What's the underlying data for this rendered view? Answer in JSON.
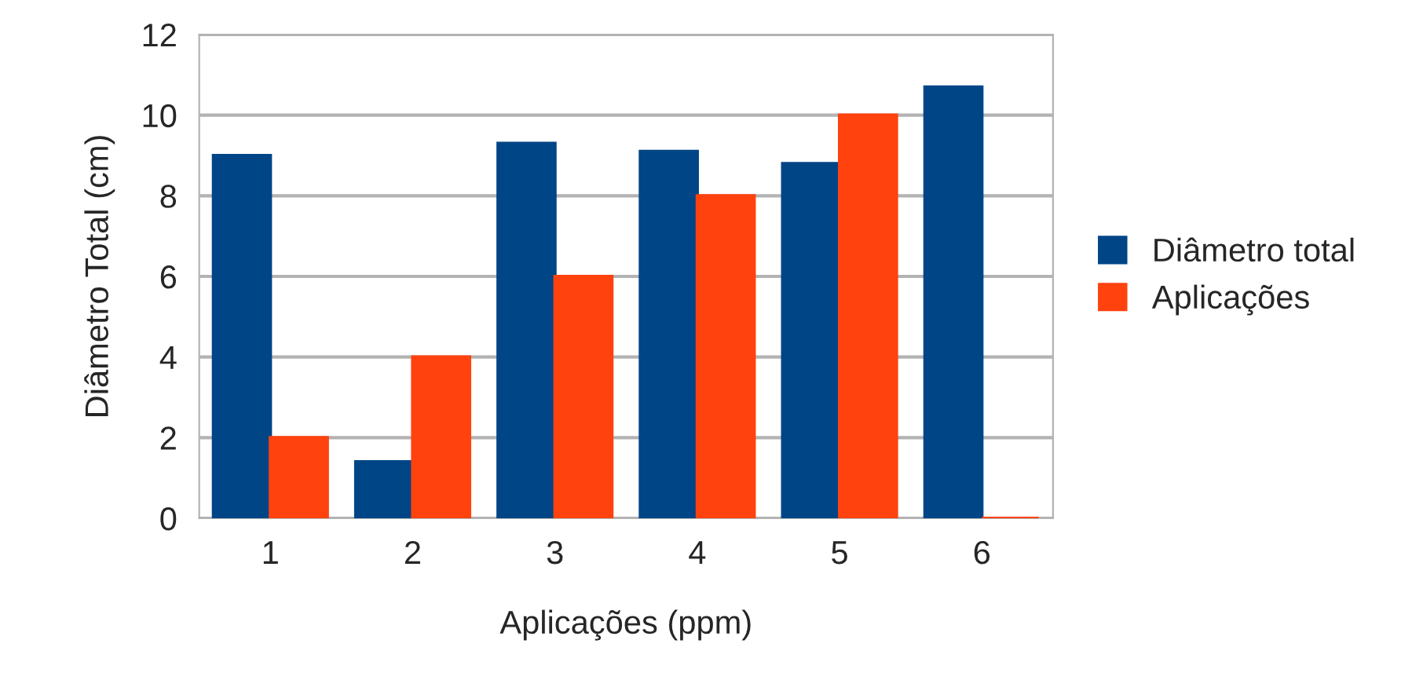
{
  "chart_data": {
    "type": "bar",
    "xlabel": "Aplicações (ppm)",
    "ylabel": "Diâmetro Total (cm)",
    "categories": [
      "1",
      "2",
      "3",
      "4",
      "5",
      "6"
    ],
    "series": [
      {
        "name": "Diâmetro total",
        "color": "#004586",
        "values": [
          9.0,
          1.4,
          9.3,
          9.1,
          8.8,
          10.7
        ]
      },
      {
        "name": "Aplicações",
        "color": "#ff420e",
        "values": [
          2.0,
          4.0,
          6.0,
          8.0,
          10.0,
          0
        ]
      }
    ],
    "ylim": [
      0,
      12
    ],
    "yticks": [
      0,
      2,
      4,
      6,
      8,
      10,
      12
    ],
    "grid": "y",
    "legend": "right"
  }
}
